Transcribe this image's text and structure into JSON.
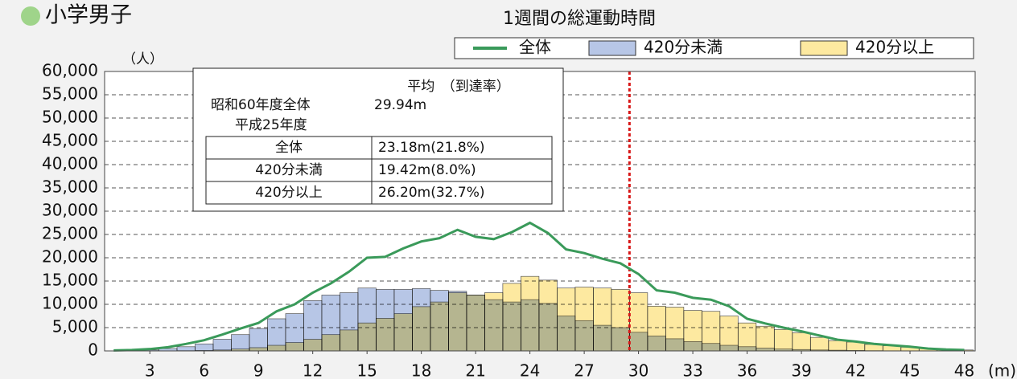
{
  "page_title": "小学男子",
  "inset": {
    "header": "平均　（到達率）",
    "showa_label": "昭和60年度全体",
    "showa_value": "29.94m",
    "heisei_label": "平成25年度",
    "rows": [
      [
        "全体",
        "23.18m(21.8%)"
      ],
      [
        "420分未満",
        "19.42m(8.0%)"
      ],
      [
        "420分以上",
        "26.20m(32.7%)"
      ]
    ]
  },
  "chart_data": {
    "type": "bar",
    "title": "1週間の総運動時間",
    "y_label": "（人）",
    "x_label": "(m)",
    "x": [
      1,
      2,
      3,
      4,
      5,
      6,
      7,
      8,
      9,
      10,
      11,
      12,
      13,
      14,
      15,
      16,
      17,
      18,
      19,
      20,
      21,
      22,
      23,
      24,
      25,
      26,
      27,
      28,
      29,
      30,
      31,
      32,
      33,
      34,
      35,
      36,
      37,
      38,
      39,
      40,
      41,
      42,
      43,
      44,
      45,
      46,
      47,
      48
    ],
    "series": [
      {
        "name": "全体",
        "kind": "line",
        "color": "#3a9a5a",
        "values": [
          100,
          200,
          400,
          800,
          1500,
          2300,
          3500,
          4800,
          6000,
          8500,
          10000,
          12500,
          14500,
          17000,
          20000,
          20200,
          22000,
          23500,
          24200,
          26000,
          24500,
          24000,
          25500,
          27500,
          25300,
          21800,
          21000,
          19800,
          18800,
          16500,
          13000,
          12500,
          11400,
          11000,
          9600,
          6900,
          5900,
          5000,
          4200,
          3300,
          2400,
          2000,
          1500,
          1200,
          900,
          500,
          300,
          200
        ]
      },
      {
        "name": "420分未満",
        "kind": "bar",
        "color": "#b7c6e6",
        "values": [
          0,
          0,
          200,
          500,
          900,
          1500,
          2500,
          3500,
          4800,
          6900,
          8000,
          10800,
          12000,
          12500,
          13500,
          13200,
          13200,
          13400,
          13000,
          12800,
          12000,
          11000,
          10500,
          11000,
          10200,
          7500,
          6500,
          5500,
          5000,
          4000,
          3200,
          2600,
          2000,
          1600,
          1200,
          900,
          600,
          400,
          300,
          200,
          150,
          100,
          50,
          30,
          20,
          10,
          5,
          0
        ]
      },
      {
        "name": "420分以上",
        "kind": "bar",
        "color": "#fde9a0",
        "values": [
          0,
          0,
          0,
          0,
          50,
          100,
          200,
          400,
          700,
          1200,
          1800,
          2500,
          3500,
          4500,
          6000,
          7000,
          8000,
          9500,
          10500,
          12500,
          12000,
          12500,
          14500,
          16000,
          15200,
          13500,
          13700,
          13500,
          13200,
          12500,
          9600,
          9400,
          8700,
          8500,
          7500,
          6000,
          5300,
          4600,
          3900,
          2900,
          2200,
          1900,
          1400,
          1100,
          800,
          500,
          300,
          200
        ]
      }
    ],
    "xlim": [
      0.5,
      48.6
    ],
    "xticks": [
      3,
      6,
      9,
      12,
      15,
      18,
      21,
      24,
      27,
      30,
      33,
      36,
      39,
      42,
      45,
      48
    ],
    "ylim": [
      0,
      60000
    ],
    "yticks": [
      0,
      {
        "value": 5000,
        "label": "5,000"
      },
      {
        "value": 10000,
        "label": "10,000"
      },
      {
        "value": 15000,
        "label": "15,000"
      },
      {
        "value": 20000,
        "label": "20,000"
      },
      {
        "value": 25000,
        "label": "25,000"
      },
      {
        "value": 30000,
        "label": "30,000"
      },
      {
        "value": 35000,
        "label": "35,000"
      },
      {
        "value": 40000,
        "label": "40,000"
      },
      {
        "value": 45000,
        "label": "45,000"
      },
      {
        "value": 50000,
        "label": "50,000"
      },
      {
        "value": 55000,
        "label": "55,000"
      },
      {
        "value": 60000,
        "label": "60,000"
      }
    ],
    "grid": true,
    "legend": "top-right",
    "vline": 29.5,
    "vline_color": "#d81818"
  }
}
